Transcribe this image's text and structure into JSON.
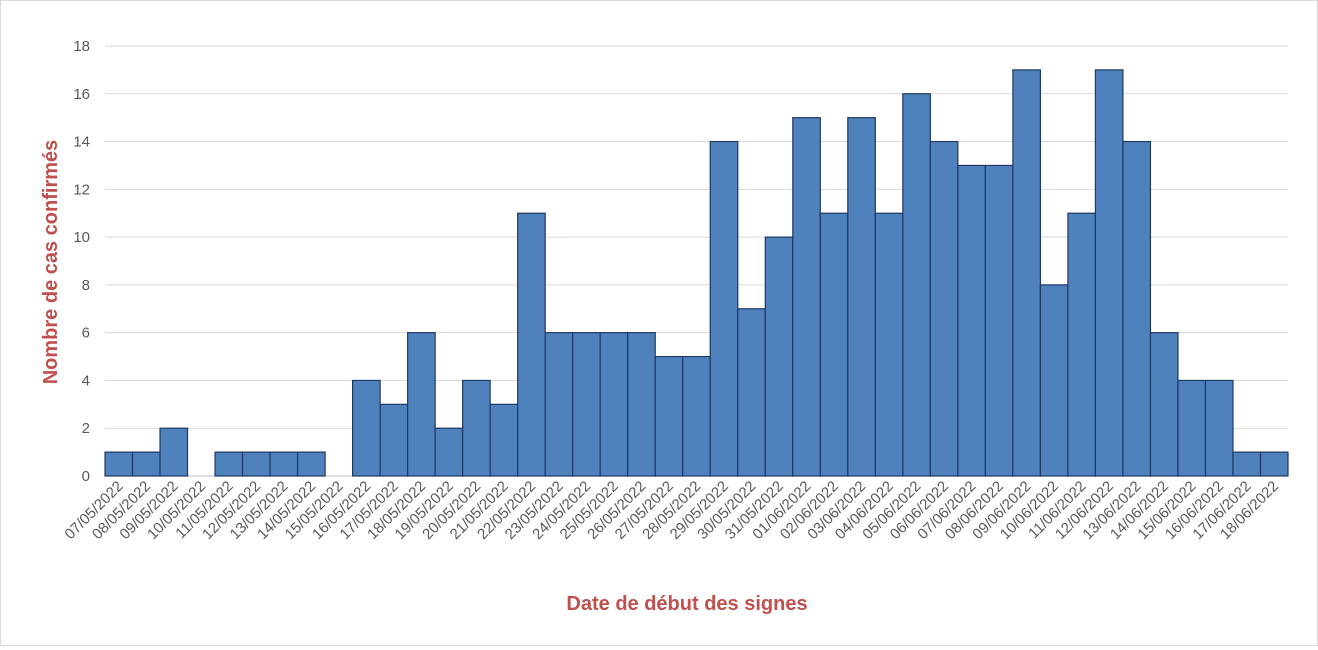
{
  "chart_data": {
    "type": "bar",
    "title": "",
    "xlabel": "Date de début des signes",
    "ylabel": "Nombre de cas confirmés",
    "ylim": [
      0,
      18
    ],
    "yticks": [
      0,
      2,
      4,
      6,
      8,
      10,
      12,
      14,
      16,
      18
    ],
    "grid": true,
    "legend": "none",
    "bar_color": "#4f81bd",
    "bar_edge_color": "#1f3864",
    "axis_title_color": "#c0504d",
    "categories": [
      "07/05/2022",
      "08/05/2022",
      "09/05/2022",
      "10/05/2022",
      "11/05/2022",
      "12/05/2022",
      "13/05/2022",
      "14/05/2022",
      "15/05/2022",
      "16/05/2022",
      "17/05/2022",
      "18/05/2022",
      "19/05/2022",
      "20/05/2022",
      "21/05/2022",
      "22/05/2022",
      "23/05/2022",
      "24/05/2022",
      "25/05/2022",
      "26/05/2022",
      "27/05/2022",
      "28/05/2022",
      "29/05/2022",
      "30/05/2022",
      "31/05/2022",
      "01/06/2022",
      "02/06/2022",
      "03/06/2022",
      "04/06/2022",
      "05/06/2022",
      "06/06/2022",
      "07/06/2022",
      "08/06/2022",
      "09/06/2022",
      "10/06/2022",
      "11/06/2022",
      "12/06/2022",
      "13/06/2022",
      "14/06/2022",
      "15/06/2022",
      "16/06/2022",
      "17/06/2022",
      "18/06/2022"
    ],
    "values": [
      1,
      1,
      2,
      0,
      1,
      1,
      1,
      1,
      0,
      4,
      3,
      6,
      2,
      4,
      3,
      11,
      6,
      6,
      6,
      6,
      5,
      5,
      14,
      7,
      10,
      15,
      11,
      15,
      11,
      16,
      14,
      13,
      13,
      17,
      8,
      11,
      17,
      14,
      6,
      4,
      4,
      1,
      1
    ]
  }
}
